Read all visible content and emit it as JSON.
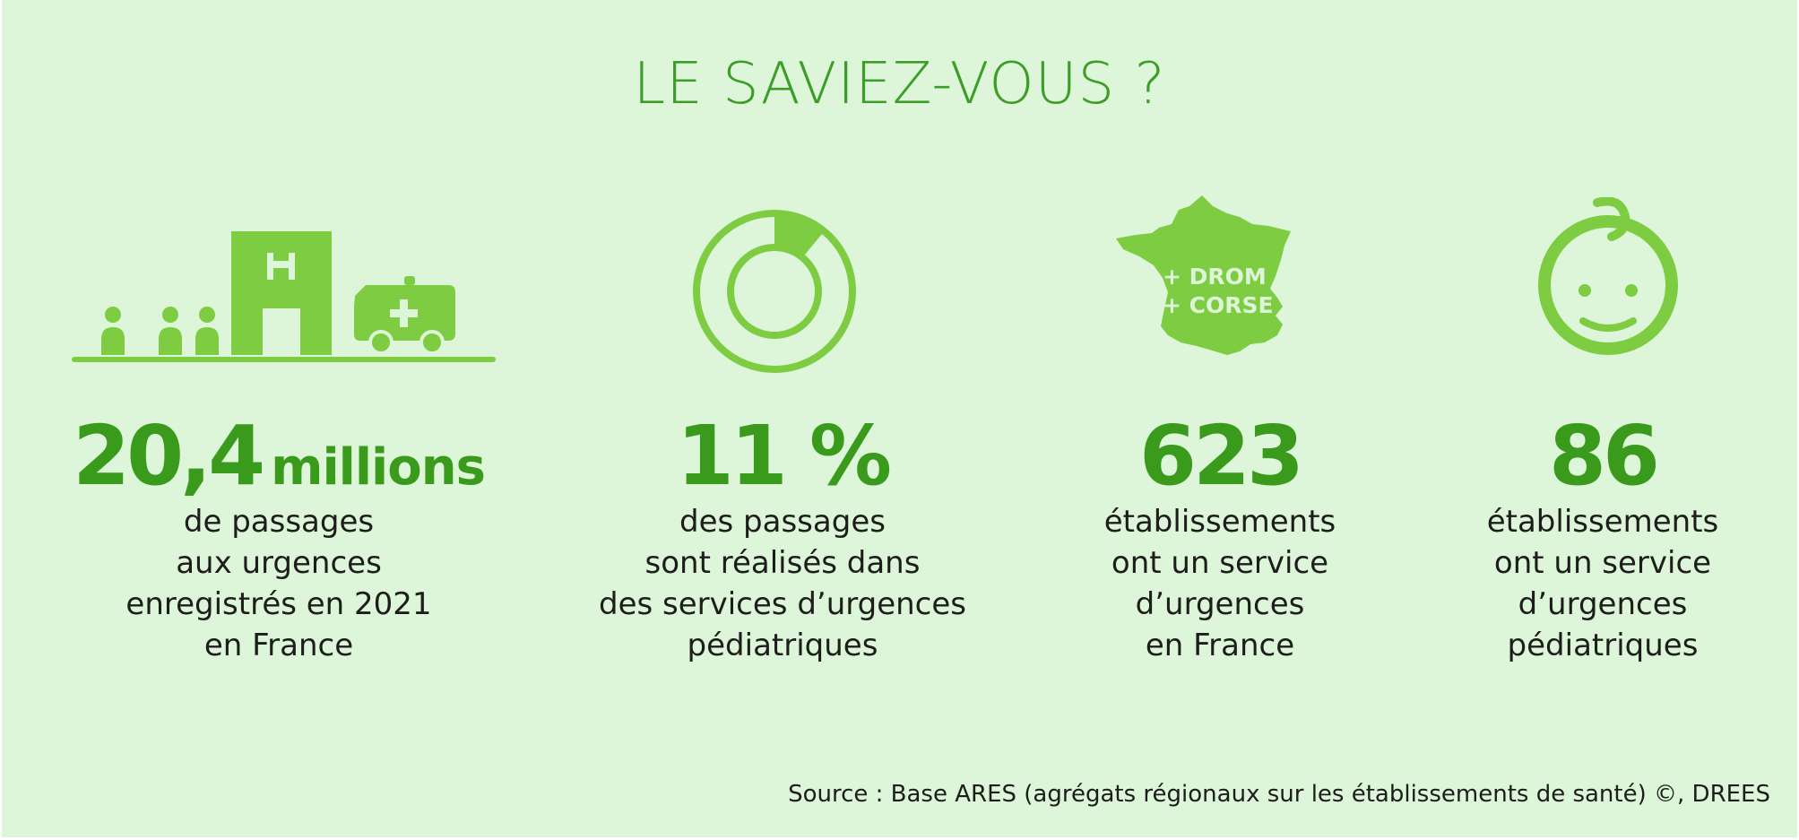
{
  "title": "LE SAVIEZ-VOUS ?",
  "accent_color": "#7dcc42",
  "figure_color": "#3a9a1c",
  "background_color": "#ddf5d8",
  "stats": [
    {
      "icon": "hospital-ambulance-icon",
      "value": "20,4",
      "unit": "millions",
      "description": [
        "de passages",
        "aux urgences",
        "enregistrés en 2021",
        "en France"
      ]
    },
    {
      "icon": "donut-share-icon",
      "value": "11 %",
      "share": 0.11,
      "description": [
        "des passages",
        "sont réalisés dans",
        "des services d’urgences",
        "pédiatriques"
      ]
    },
    {
      "icon": "france-map-icon",
      "icon_text": [
        "+ DROM",
        "+ CORSE"
      ],
      "value": "623",
      "description": [
        "établissements",
        "ont un service",
        "d’urgences",
        "en France"
      ]
    },
    {
      "icon": "baby-face-icon",
      "value": "86",
      "description": [
        "établissements",
        "ont un service",
        "d’urgences",
        "pédiatriques"
      ]
    }
  ],
  "source": "Source : Base ARES (agrégats régionaux sur les établissements de santé) ©, DREES"
}
